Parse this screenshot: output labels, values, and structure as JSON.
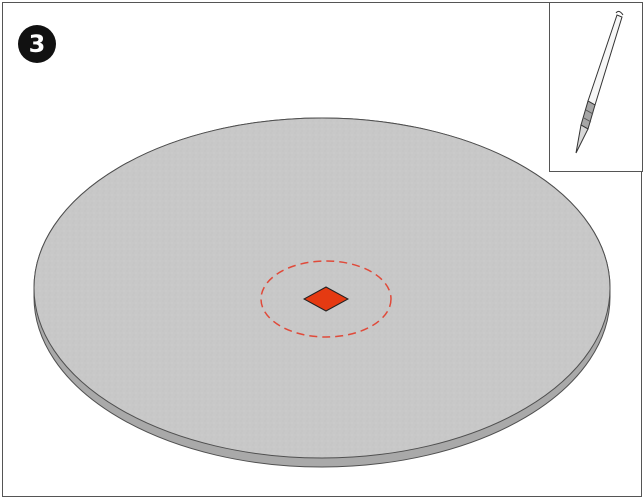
{
  "step": {
    "number": "3"
  },
  "colors": {
    "frame_border": "#555555",
    "disc_top": "#c8c8c8",
    "disc_edge": "#a9a9a9",
    "center_mark": "#e53a12",
    "dashed_circle": "#e04a3a",
    "badge_bg": "#111111",
    "badge_text": "#ffffff"
  },
  "illustration": {
    "main_subject": "round-disc",
    "marker": "center-square-mark",
    "guide": "dashed-center-circle"
  },
  "inset": {
    "tool_icon": "craft-knife-icon"
  }
}
